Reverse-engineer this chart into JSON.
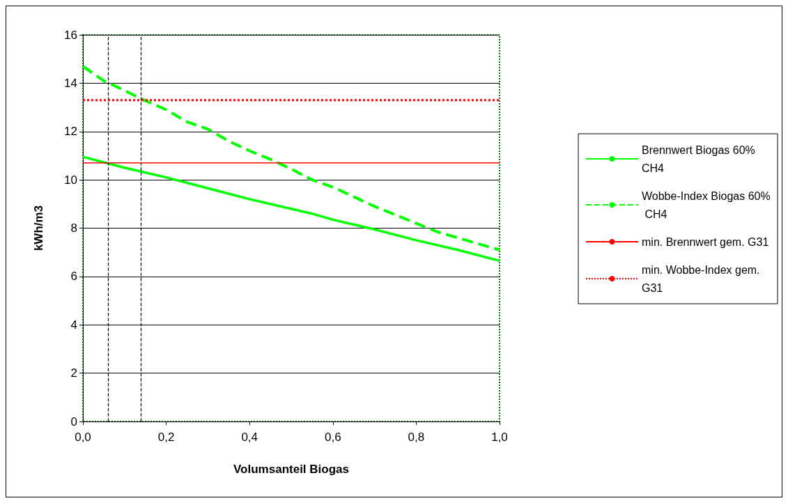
{
  "chart_data": {
    "type": "line",
    "xlabel": "Volumsanteil Biogas",
    "ylabel": "kWh/m3",
    "xlim": [
      0,
      1
    ],
    "xticks": [
      {
        "value": 0,
        "label": "0,0"
      },
      {
        "value": 0.2,
        "label": "0,2"
      },
      {
        "value": 0.4,
        "label": "0,4"
      },
      {
        "value": 0.6,
        "label": "0,6"
      },
      {
        "value": 0.8,
        "label": "0,8"
      },
      {
        "value": 1,
        "label": "1,0"
      }
    ],
    "ylim": [
      0,
      16
    ],
    "yticks": [
      0,
      2,
      4,
      6,
      8,
      10,
      12,
      14,
      16
    ],
    "grid": "y",
    "legend": "right",
    "marker": "none",
    "series": [
      {
        "name": "Brennwert Biogas 60% CH4",
        "color": "#00ff00",
        "line_style": "solid",
        "x": [
          0,
          0.1,
          0.2,
          0.3,
          0.4,
          0.5,
          0.55,
          0.6,
          0.7,
          0.8,
          0.9,
          1
        ],
        "values": [
          10.95,
          10.5,
          10.1,
          9.65,
          9.2,
          8.8,
          8.6,
          8.35,
          7.95,
          7.5,
          7.1,
          6.65
        ]
      },
      {
        "name": "Wobbe-Index Biogas 60% CH4",
        "color": "#00ff00",
        "line_style": "dashed",
        "x": [
          0,
          0.05,
          0.1,
          0.14,
          0.2,
          0.25,
          0.3,
          0.35,
          0.4,
          0.45,
          0.5,
          0.55,
          0.6,
          0.65,
          0.7,
          0.75,
          0.8,
          0.85,
          0.9,
          0.95,
          1
        ],
        "values": [
          14.7,
          14.1,
          13.7,
          13.35,
          12.9,
          12.4,
          12.1,
          11.6,
          11.2,
          10.85,
          10.45,
          10.0,
          9.7,
          9.3,
          8.9,
          8.55,
          8.2,
          7.85,
          7.6,
          7.35,
          7.1
        ]
      },
      {
        "name": "min. Brennwert gem. G31",
        "color": "#ff0000",
        "line_style": "solid",
        "x": [
          0,
          1
        ],
        "values": [
          10.7,
          10.7
        ]
      },
      {
        "name": "min. Wobbe-Index gem. G31",
        "color": "#ff0000",
        "line_style": "dotted",
        "x": [
          0,
          1
        ],
        "values": [
          13.3,
          13.3
        ]
      }
    ],
    "ref_lines": [
      {
        "axis": "x",
        "value": 0.058,
        "color": "#000000",
        "line_style": "dashed"
      },
      {
        "axis": "x",
        "value": 0.143,
        "color": "#000000",
        "line_style": "dashed"
      }
    ]
  }
}
